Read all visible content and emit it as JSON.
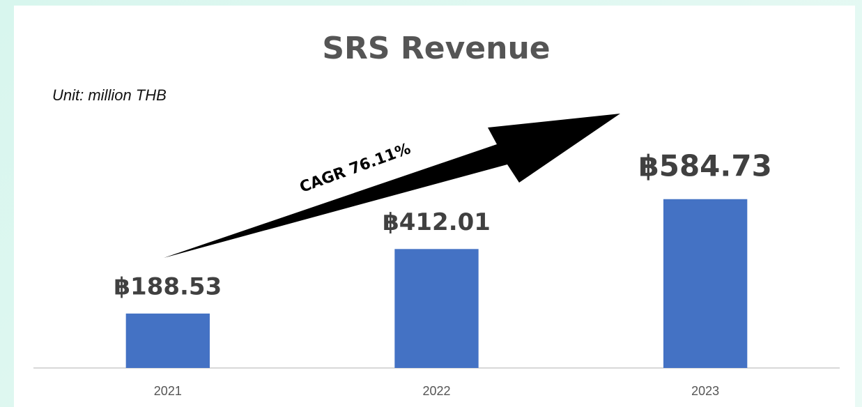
{
  "chart_data": {
    "type": "bar",
    "title": "SRS Revenue",
    "subtitle": "Unit: million THB",
    "annotation": "CAGR 76.11%",
    "categories": [
      "2021",
      "2022",
      "2023"
    ],
    "values": [
      188.53,
      412.01,
      584.73
    ],
    "value_labels": [
      "฿188.53",
      "฿412.01",
      "฿584.73"
    ],
    "color": "#4472c4",
    "ylim": [
      0,
      700
    ],
    "grid": false
  }
}
